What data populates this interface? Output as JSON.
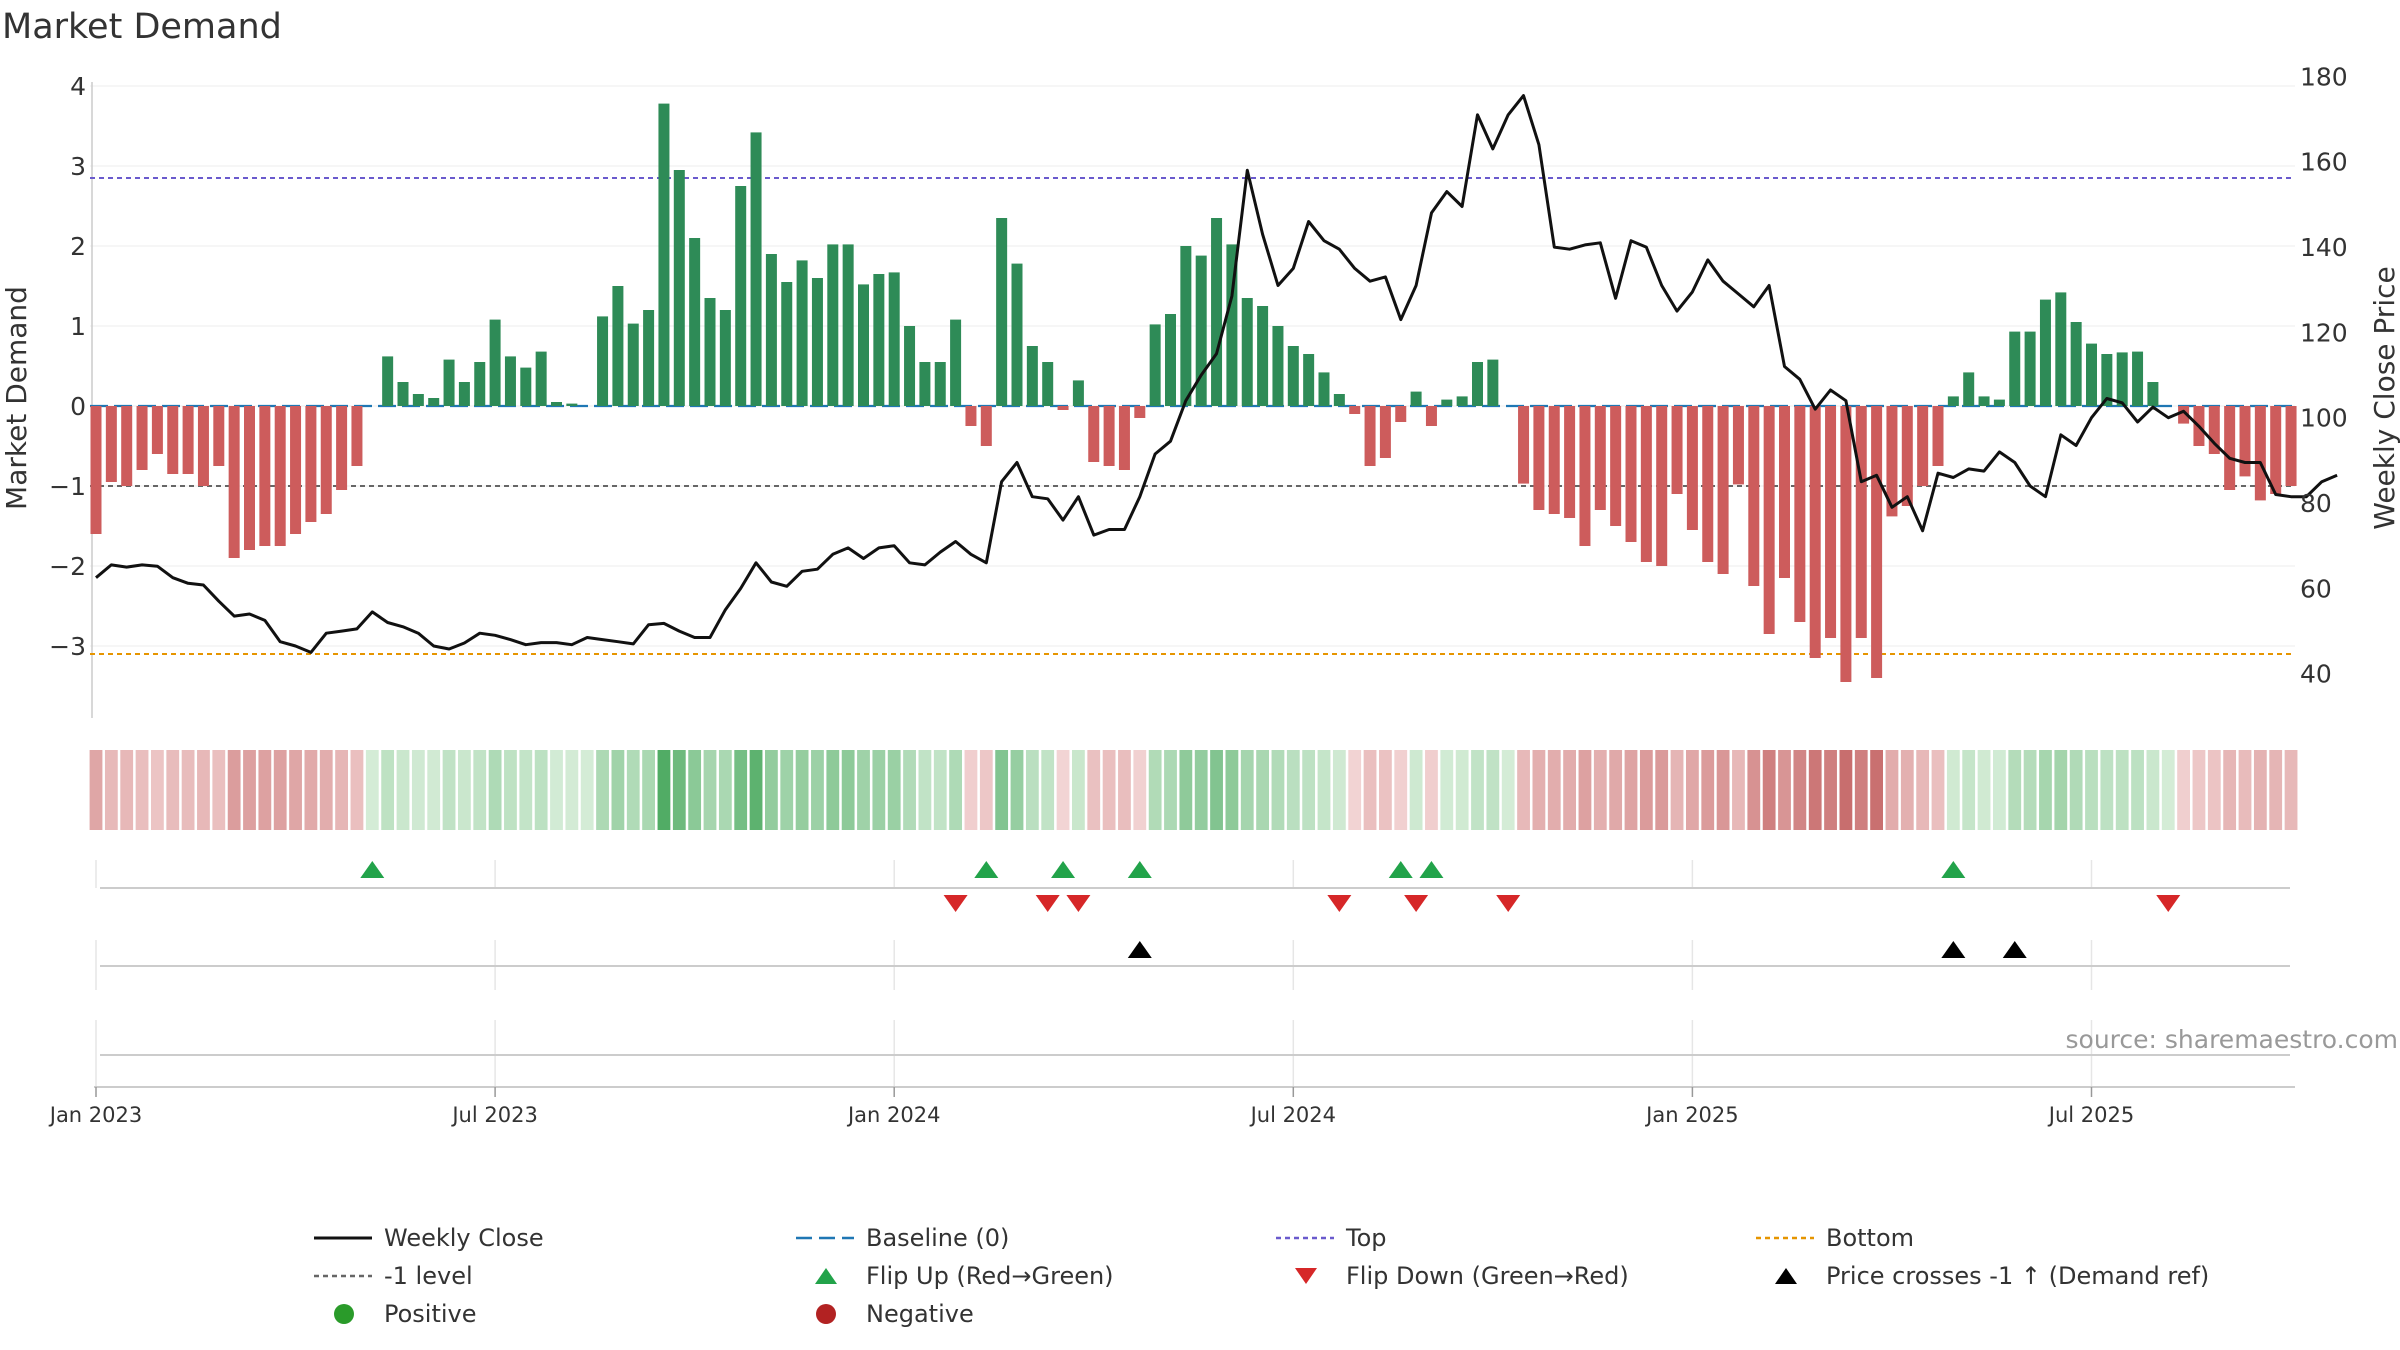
{
  "chart_data": {
    "type": "bar+line",
    "title": "Market Demand",
    "ylabel_left": "Market Demand",
    "ylabel_right": "Weekly Close Price",
    "ylim_left": [
      -3.8,
      4.2
    ],
    "ylim_right": [
      31.5,
      181.5
    ],
    "yticks_left": [
      4,
      3,
      2,
      1,
      0,
      -1,
      -2,
      -3
    ],
    "yticks_left_labels": [
      "4",
      "3",
      "2",
      "1",
      "0",
      "−1",
      "−2",
      "−3"
    ],
    "yticks_right": [
      180,
      160,
      140,
      120,
      100,
      80,
      60,
      40
    ],
    "xticks": [
      {
        "week": 1,
        "label": "Jan 2023"
      },
      {
        "week": 27,
        "label": "Jul 2023"
      },
      {
        "week": 53,
        "label": "Jan 2024"
      },
      {
        "week": 79,
        "label": "Jul 2024"
      },
      {
        "week": 105,
        "label": "Jan 2025"
      },
      {
        "week": 131,
        "label": "Jul 2025"
      }
    ],
    "reference_lines": {
      "top": 2.85,
      "bottom": -3.1,
      "minus_one": -1,
      "baseline": 0
    },
    "market_demand": [
      -1.6,
      -0.95,
      -1.0,
      -0.8,
      -0.6,
      -0.85,
      -0.85,
      -1.0,
      -0.75,
      -1.9,
      -1.8,
      -1.75,
      -1.75,
      -1.6,
      -1.45,
      -1.35,
      -1.05,
      -0.75,
      0,
      0.62,
      0.3,
      0.15,
      0.1,
      0.58,
      0.3,
      0.55,
      1.08,
      0.62,
      0.48,
      0.68,
      0.05,
      0.03,
      0,
      1.12,
      1.5,
      1.03,
      1.2,
      3.78,
      2.95,
      2.1,
      1.35,
      1.2,
      2.75,
      3.42,
      1.9,
      1.55,
      1.82,
      1.6,
      2.02,
      2.02,
      1.52,
      1.65,
      1.67,
      1.0,
      0.55,
      0.55,
      1.08,
      -0.25,
      -0.5,
      2.35,
      1.78,
      0.75,
      0.55,
      -0.05,
      0.32,
      -0.7,
      -0.75,
      -0.8,
      -0.15,
      1.02,
      1.15,
      2.0,
      1.88,
      2.35,
      2.02,
      1.35,
      1.25,
      1.0,
      0.75,
      0.65,
      0.42,
      0.15,
      -0.1,
      -0.75,
      -0.65,
      -0.2,
      0.18,
      -0.25,
      0.08,
      0.12,
      0.55,
      0.58,
      0,
      -0.97,
      -1.3,
      -1.35,
      -1.4,
      -1.75,
      -1.3,
      -1.5,
      -1.7,
      -1.95,
      -2.0,
      -1.1,
      -1.55,
      -1.95,
      -2.1,
      -0.98,
      -2.25,
      -2.85,
      -2.15,
      -2.7,
      -3.15,
      -2.9,
      -3.45,
      -2.9,
      -3.4,
      -1.38,
      -1.25,
      -1.0,
      -0.75,
      0.12,
      0.42,
      0.12,
      0.08,
      0.93,
      0.93,
      1.33,
      1.42,
      1.05,
      0.78,
      0.65,
      0.67,
      0.68,
      0.3,
      0,
      -0.22,
      -0.5,
      -0.6,
      -1.05,
      -0.88,
      -1.18,
      -1.1,
      -1.0
    ],
    "weekly_close": [
      62.5,
      65.5,
      65,
      65.5,
      65.2,
      62.5,
      61.2,
      60.8,
      57,
      53.5,
      54,
      52.5,
      47.5,
      46.5,
      45,
      49.5,
      50,
      50.5,
      54.5,
      52,
      51,
      49.5,
      46.5,
      45.8,
      47.2,
      49.5,
      49,
      48,
      46.8,
      47.3,
      47.3,
      46.8,
      48.5,
      48,
      47.5,
      47,
      51.5,
      51.8,
      50,
      48.5,
      48.5,
      55,
      60,
      66,
      61.5,
      60.5,
      64,
      64.5,
      68,
      69.5,
      67,
      69.5,
      70,
      66,
      65.5,
      68.5,
      71,
      68,
      66,
      85,
      89.5,
      81.5,
      81,
      76,
      81.5,
      72.5,
      73.8,
      73.8,
      81.5,
      91.5,
      94.5,
      104,
      110,
      115,
      128.5,
      158,
      143,
      131,
      135,
      146,
      141.5,
      139.5,
      135,
      132,
      133,
      123,
      131,
      148,
      153,
      149.5,
      171,
      163,
      171,
      175.5,
      164,
      140,
      139.5,
      140.5,
      141,
      128,
      141.5,
      140,
      131,
      125,
      129.5,
      137,
      132,
      129,
      126,
      131,
      112,
      109,
      102,
      106.5,
      104,
      85,
      86.5,
      79,
      81.5,
      73.5,
      87,
      86,
      88,
      87.5,
      92,
      89.5,
      84,
      81.5,
      96,
      93.5,
      100,
      104.5,
      103.5,
      99,
      102.5,
      100,
      101.5,
      98,
      94,
      90.5,
      89.5,
      89.5,
      82,
      81.5,
      81.5,
      85,
      86.5
    ],
    "heatmap_strip": {
      "description": "per-week color band mirroring market demand sign and magnitude"
    },
    "flip_up_weeks": [
      19,
      59,
      64,
      69,
      86,
      88,
      122
    ],
    "flip_down_weeks": [
      57,
      63,
      65,
      82,
      87,
      93,
      136
    ],
    "price_crosses_weeks": [
      69,
      122,
      126
    ],
    "legend": [
      {
        "label": "Weekly Close",
        "style": "line-black"
      },
      {
        "label": "Baseline (0)",
        "style": "dash-blue"
      },
      {
        "label": "Top",
        "style": "dot-purple"
      },
      {
        "label": "Bottom",
        "style": "dot-orange"
      },
      {
        "label": "-1 level",
        "style": "dot-gray"
      },
      {
        "label": "Flip Up (Red→Green)",
        "style": "tri-up-green"
      },
      {
        "label": "Flip Down (Green→Red)",
        "style": "tri-down-red"
      },
      {
        "label": "Price crosses -1 ↑ (Demand ref)",
        "style": "tri-up-black"
      },
      {
        "label": "Positive",
        "style": "dot-green"
      },
      {
        "label": "Negative",
        "style": "dot-red"
      }
    ],
    "source": "source: sharemaestro.com"
  },
  "colors": {
    "positive_bar": "#2e8b57",
    "negative_bar": "#cd5c5c",
    "price_line": "#111111",
    "baseline": "#1f77b4",
    "top_line": "#6a5acd",
    "bottom_line": "#e69500",
    "minus_one_line": "#666666",
    "flip_up": "#22a34a",
    "flip_down": "#d62728",
    "cross": "#000000",
    "positive_dot": "#2a9b2a",
    "negative_dot": "#b22222"
  }
}
